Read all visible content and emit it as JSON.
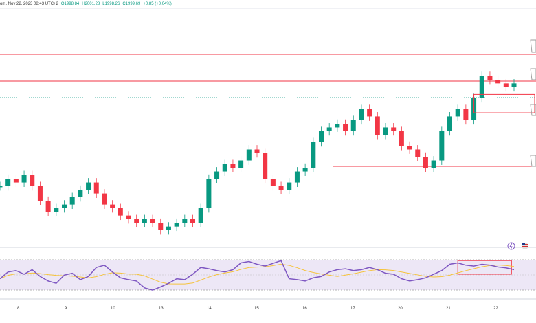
{
  "header": {
    "symbol_tail": "om, Nov 22, 2023 08:43 UTC+2",
    "open": "O1998.84",
    "high": "H2001.28",
    "low": "L1998.26",
    "close": "C1999.69",
    "change": "+0.85 (+0.04%)"
  },
  "colors": {
    "up": "#089981",
    "down": "#f23645",
    "level_line": "#f23645",
    "rsi_line": "#7e57c2",
    "rsi_ma": "#f5c33b",
    "rsi_band": "#ede7f6",
    "last_price_line": "#089981"
  },
  "icons": [
    "lightning-icon",
    "flag-us-icon",
    "alert-icon"
  ],
  "x_axis": {
    "labels": [
      "8",
      "9",
      "10",
      "13",
      "14",
      "15",
      "16",
      "17",
      "20",
      "21",
      "22"
    ]
  },
  "chart_data": {
    "type": "candlestick",
    "title": "",
    "price_trend": [
      12,
      14,
      13,
      15,
      12,
      8,
      5,
      6,
      7,
      9,
      11,
      13,
      10,
      7,
      6,
      4,
      3,
      2,
      3,
      2,
      0,
      1,
      2,
      3,
      2,
      6,
      14,
      16,
      18,
      17,
      19,
      22,
      21,
      14,
      12,
      11,
      13,
      16,
      17,
      24,
      27,
      28,
      29,
      27,
      30,
      33,
      31,
      26,
      28,
      27,
      23,
      22,
      20,
      17,
      19,
      27,
      31,
      33,
      30,
      36,
      42,
      41,
      40,
      39,
      40
    ],
    "price_range": [
      0,
      44
    ],
    "key_levels_percent_of_range": [
      90,
      73,
      55,
      30
    ],
    "rsi_range": [
      0,
      100
    ],
    "rsi_levels": [
      70,
      30
    ],
    "rsi_values": [
      40,
      55,
      58,
      50,
      60,
      45,
      35,
      30,
      48,
      52,
      38,
      45,
      65,
      70,
      55,
      42,
      38,
      35,
      20,
      15,
      22,
      30,
      40,
      38,
      50,
      65,
      62,
      58,
      55,
      60,
      75,
      78,
      72,
      68,
      74,
      80,
      40,
      38,
      35,
      42,
      45,
      55,
      60,
      62,
      58,
      60,
      65,
      60,
      52,
      50,
      40,
      35,
      38,
      42,
      50,
      58,
      72,
      75,
      70,
      68,
      72,
      70,
      66,
      64,
      60
    ],
    "highlight_boxes": [
      {
        "pane": "price",
        "from_index": 59,
        "to_index": 64,
        "from_value": 32,
        "to_value": 37
      },
      {
        "pane": "rsi",
        "from_index": 57,
        "to_index": 63,
        "from_value": 50,
        "to_value": 80
      }
    ]
  }
}
